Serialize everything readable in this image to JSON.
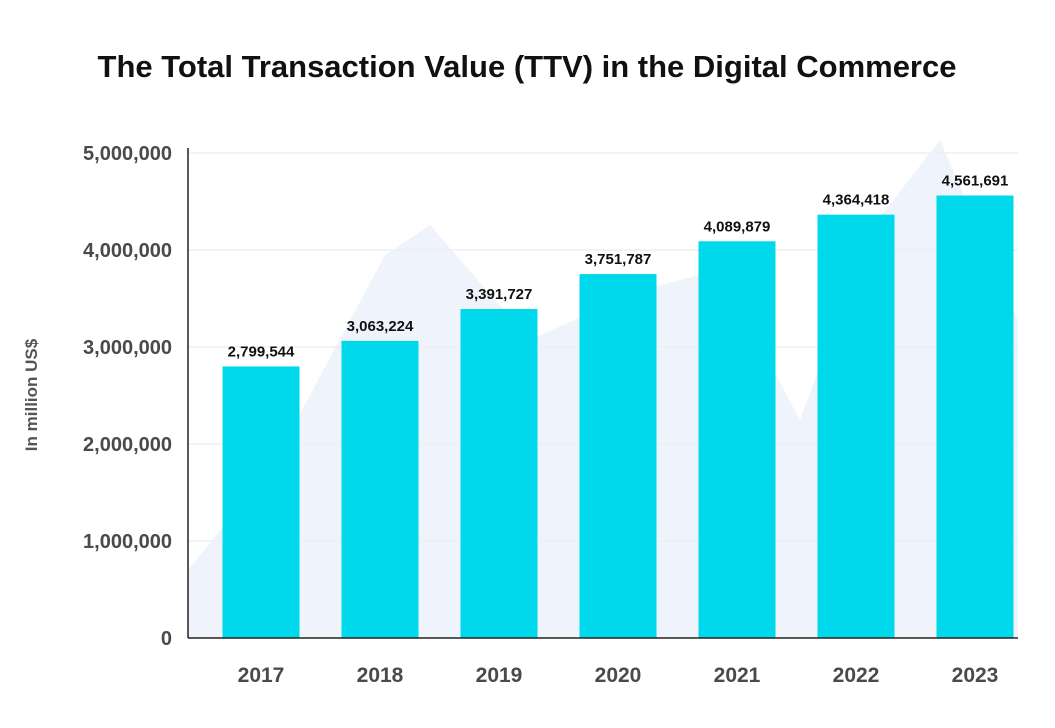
{
  "chart_data": {
    "type": "bar",
    "title": "The Total Transaction Value (TTV) in the Digital Commerce",
    "xlabel": "",
    "ylabel": "In million US$",
    "categories": [
      "2017",
      "2018",
      "2019",
      "2020",
      "2021",
      "2022",
      "2023"
    ],
    "values": [
      2799544,
      3063224,
      3391727,
      3751787,
      4089879,
      4364418,
      4561691
    ],
    "data_labels": [
      "2,799,544",
      "3,063,224",
      "3,391,727",
      "3,751,787",
      "4,089,879",
      "4,364,418",
      "4,561,691"
    ],
    "ylim": [
      0,
      5000000
    ],
    "yticks": [
      0,
      1000000,
      2000000,
      3000000,
      4000000,
      5000000
    ],
    "ytick_labels": [
      "0",
      "1,000,000",
      "2,000,000",
      "3,000,000",
      "4,000,000",
      "5,000,000"
    ],
    "grid": true,
    "legend": "none",
    "colors": {
      "bar": "#00D9EC",
      "background_shape": "#EEF3FC",
      "grid": "#EDEFF3",
      "axis": "#222222"
    }
  }
}
